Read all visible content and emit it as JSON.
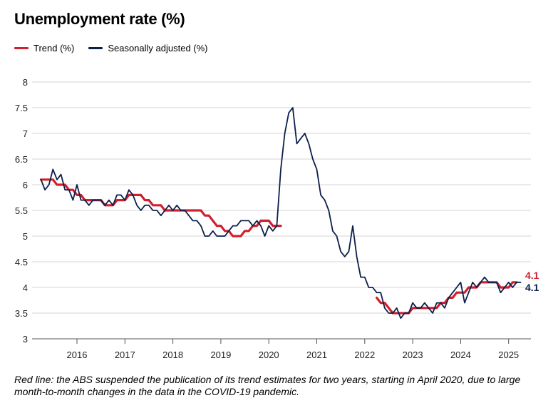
{
  "chart_data": {
    "type": "line",
    "title": "Unemployment rate (%)",
    "xlabel": "",
    "ylabel": "",
    "ylim": [
      3,
      8
    ],
    "yticks": [
      "3",
      "3.5",
      "4",
      "4.5",
      "5",
      "5.5",
      "6",
      "6.5",
      "7",
      "7.5",
      "8"
    ],
    "xticks": [
      "2016",
      "2017",
      "2018",
      "2019",
      "2020",
      "2021",
      "2022",
      "2023",
      "2024",
      "2025"
    ],
    "legend_position": "top-left",
    "grid": "horizontal",
    "series": [
      {
        "name": "Trend (%)",
        "color": "#d0202e",
        "end_label": "4.1",
        "segments": [
          [
            [
              "2015-04",
              6.1
            ],
            [
              "2015-05",
              6.1
            ],
            [
              "2015-06",
              6.1
            ],
            [
              "2015-07",
              6.1
            ],
            [
              "2015-08",
              6.0
            ],
            [
              "2015-09",
              6.0
            ],
            [
              "2015-10",
              6.0
            ],
            [
              "2015-11",
              5.9
            ],
            [
              "2015-12",
              5.9
            ],
            [
              "2016-01",
              5.8
            ],
            [
              "2016-02",
              5.8
            ],
            [
              "2016-03",
              5.7
            ],
            [
              "2016-04",
              5.7
            ],
            [
              "2016-05",
              5.7
            ],
            [
              "2016-06",
              5.7
            ],
            [
              "2016-07",
              5.7
            ],
            [
              "2016-08",
              5.6
            ],
            [
              "2016-09",
              5.6
            ],
            [
              "2016-10",
              5.6
            ],
            [
              "2016-11",
              5.7
            ],
            [
              "2016-12",
              5.7
            ],
            [
              "2017-01",
              5.7
            ],
            [
              "2017-02",
              5.8
            ],
            [
              "2017-03",
              5.8
            ],
            [
              "2017-04",
              5.8
            ],
            [
              "2017-05",
              5.8
            ],
            [
              "2017-06",
              5.7
            ],
            [
              "2017-07",
              5.7
            ],
            [
              "2017-08",
              5.6
            ],
            [
              "2017-09",
              5.6
            ],
            [
              "2017-10",
              5.6
            ],
            [
              "2017-11",
              5.5
            ],
            [
              "2017-12",
              5.5
            ],
            [
              "2018-01",
              5.5
            ],
            [
              "2018-02",
              5.5
            ],
            [
              "2018-03",
              5.5
            ],
            [
              "2018-04",
              5.5
            ],
            [
              "2018-05",
              5.5
            ],
            [
              "2018-06",
              5.5
            ],
            [
              "2018-07",
              5.5
            ],
            [
              "2018-08",
              5.5
            ],
            [
              "2018-09",
              5.4
            ],
            [
              "2018-10",
              5.4
            ],
            [
              "2018-11",
              5.3
            ],
            [
              "2018-12",
              5.2
            ],
            [
              "2019-01",
              5.2
            ],
            [
              "2019-02",
              5.1
            ],
            [
              "2019-03",
              5.1
            ],
            [
              "2019-04",
              5.0
            ],
            [
              "2019-05",
              5.0
            ],
            [
              "2019-06",
              5.0
            ],
            [
              "2019-07",
              5.1
            ],
            [
              "2019-08",
              5.1
            ],
            [
              "2019-09",
              5.2
            ],
            [
              "2019-10",
              5.2
            ],
            [
              "2019-11",
              5.3
            ],
            [
              "2019-12",
              5.3
            ],
            [
              "2020-01",
              5.3
            ],
            [
              "2020-02",
              5.2
            ],
            [
              "2020-03",
              5.2
            ],
            [
              "2020-04",
              5.2
            ]
          ],
          [
            [
              "2022-04",
              3.8
            ],
            [
              "2022-05",
              3.7
            ],
            [
              "2022-06",
              3.7
            ],
            [
              "2022-07",
              3.6
            ],
            [
              "2022-08",
              3.5
            ],
            [
              "2022-09",
              3.5
            ],
            [
              "2022-10",
              3.5
            ],
            [
              "2022-11",
              3.5
            ],
            [
              "2022-12",
              3.5
            ],
            [
              "2023-01",
              3.6
            ],
            [
              "2023-02",
              3.6
            ],
            [
              "2023-03",
              3.6
            ],
            [
              "2023-04",
              3.6
            ],
            [
              "2023-05",
              3.6
            ],
            [
              "2023-06",
              3.6
            ],
            [
              "2023-07",
              3.6
            ],
            [
              "2023-08",
              3.7
            ],
            [
              "2023-09",
              3.7
            ],
            [
              "2023-10",
              3.8
            ],
            [
              "2023-11",
              3.8
            ],
            [
              "2023-12",
              3.9
            ],
            [
              "2024-01",
              3.9
            ],
            [
              "2024-02",
              3.9
            ],
            [
              "2024-03",
              4.0
            ],
            [
              "2024-04",
              4.0
            ],
            [
              "2024-05",
              4.0
            ],
            [
              "2024-06",
              4.1
            ],
            [
              "2024-07",
              4.1
            ],
            [
              "2024-08",
              4.1
            ],
            [
              "2024-09",
              4.1
            ],
            [
              "2024-10",
              4.1
            ],
            [
              "2024-11",
              4.0
            ],
            [
              "2024-12",
              4.0
            ],
            [
              "2025-01",
              4.0
            ],
            [
              "2025-02",
              4.1
            ],
            [
              "2025-03",
              4.1
            ]
          ]
        ]
      },
      {
        "name": "Seasonally adjusted (%)",
        "color": "#0b1f4b",
        "end_label": "4.1",
        "segments": [
          [
            [
              "2015-04",
              6.1
            ],
            [
              "2015-05",
              5.9
            ],
            [
              "2015-06",
              6.0
            ],
            [
              "2015-07",
              6.3
            ],
            [
              "2015-08",
              6.1
            ],
            [
              "2015-09",
              6.2
            ],
            [
              "2015-10",
              5.9
            ],
            [
              "2015-11",
              5.9
            ],
            [
              "2015-12",
              5.7
            ],
            [
              "2016-01",
              6.0
            ],
            [
              "2016-02",
              5.7
            ],
            [
              "2016-03",
              5.7
            ],
            [
              "2016-04",
              5.6
            ],
            [
              "2016-05",
              5.7
            ],
            [
              "2016-06",
              5.7
            ],
            [
              "2016-07",
              5.7
            ],
            [
              "2016-08",
              5.6
            ],
            [
              "2016-09",
              5.7
            ],
            [
              "2016-10",
              5.6
            ],
            [
              "2016-11",
              5.8
            ],
            [
              "2016-12",
              5.8
            ],
            [
              "2017-01",
              5.7
            ],
            [
              "2017-02",
              5.9
            ],
            [
              "2017-03",
              5.8
            ],
            [
              "2017-04",
              5.6
            ],
            [
              "2017-05",
              5.5
            ],
            [
              "2017-06",
              5.6
            ],
            [
              "2017-07",
              5.6
            ],
            [
              "2017-08",
              5.5
            ],
            [
              "2017-09",
              5.5
            ],
            [
              "2017-10",
              5.4
            ],
            [
              "2017-11",
              5.5
            ],
            [
              "2017-12",
              5.6
            ],
            [
              "2018-01",
              5.5
            ],
            [
              "2018-02",
              5.6
            ],
            [
              "2018-03",
              5.5
            ],
            [
              "2018-04",
              5.5
            ],
            [
              "2018-05",
              5.4
            ],
            [
              "2018-06",
              5.3
            ],
            [
              "2018-07",
              5.3
            ],
            [
              "2018-08",
              5.2
            ],
            [
              "2018-09",
              5.0
            ],
            [
              "2018-10",
              5.0
            ],
            [
              "2018-11",
              5.1
            ],
            [
              "2018-12",
              5.0
            ],
            [
              "2019-01",
              5.0
            ],
            [
              "2019-02",
              5.0
            ],
            [
              "2019-03",
              5.1
            ],
            [
              "2019-04",
              5.2
            ],
            [
              "2019-05",
              5.2
            ],
            [
              "2019-06",
              5.3
            ],
            [
              "2019-07",
              5.3
            ],
            [
              "2019-08",
              5.3
            ],
            [
              "2019-09",
              5.2
            ],
            [
              "2019-10",
              5.3
            ],
            [
              "2019-11",
              5.2
            ],
            [
              "2019-12",
              5.0
            ],
            [
              "2020-01",
              5.2
            ],
            [
              "2020-02",
              5.1
            ],
            [
              "2020-03",
              5.2
            ],
            [
              "2020-04",
              6.3
            ],
            [
              "2020-05",
              7.0
            ],
            [
              "2020-06",
              7.4
            ],
            [
              "2020-07",
              7.5
            ],
            [
              "2020-08",
              6.8
            ],
            [
              "2020-09",
              6.9
            ],
            [
              "2020-10",
              7.0
            ],
            [
              "2020-11",
              6.8
            ],
            [
              "2020-12",
              6.5
            ],
            [
              "2021-01",
              6.3
            ],
            [
              "2021-02",
              5.8
            ],
            [
              "2021-03",
              5.7
            ],
            [
              "2021-04",
              5.5
            ],
            [
              "2021-05",
              5.1
            ],
            [
              "2021-06",
              5.0
            ],
            [
              "2021-07",
              4.7
            ],
            [
              "2021-08",
              4.6
            ],
            [
              "2021-09",
              4.7
            ],
            [
              "2021-10",
              5.2
            ],
            [
              "2021-11",
              4.6
            ],
            [
              "2021-12",
              4.2
            ],
            [
              "2022-01",
              4.2
            ],
            [
              "2022-02",
              4.0
            ],
            [
              "2022-03",
              4.0
            ],
            [
              "2022-04",
              3.9
            ],
            [
              "2022-05",
              3.9
            ],
            [
              "2022-06",
              3.6
            ],
            [
              "2022-07",
              3.5
            ],
            [
              "2022-08",
              3.5
            ],
            [
              "2022-09",
              3.6
            ],
            [
              "2022-10",
              3.4
            ],
            [
              "2022-11",
              3.5
            ],
            [
              "2022-12",
              3.5
            ],
            [
              "2023-01",
              3.7
            ],
            [
              "2023-02",
              3.6
            ],
            [
              "2023-03",
              3.6
            ],
            [
              "2023-04",
              3.7
            ],
            [
              "2023-05",
              3.6
            ],
            [
              "2023-06",
              3.5
            ],
            [
              "2023-07",
              3.7
            ],
            [
              "2023-08",
              3.7
            ],
            [
              "2023-09",
              3.6
            ],
            [
              "2023-10",
              3.8
            ],
            [
              "2023-11",
              3.9
            ],
            [
              "2023-12",
              4.0
            ],
            [
              "2024-01",
              4.1
            ],
            [
              "2024-02",
              3.7
            ],
            [
              "2024-03",
              3.9
            ],
            [
              "2024-04",
              4.1
            ],
            [
              "2024-05",
              4.0
            ],
            [
              "2024-06",
              4.1
            ],
            [
              "2024-07",
              4.2
            ],
            [
              "2024-08",
              4.1
            ],
            [
              "2024-09",
              4.1
            ],
            [
              "2024-10",
              4.1
            ],
            [
              "2024-11",
              3.9
            ],
            [
              "2024-12",
              4.0
            ],
            [
              "2025-01",
              4.1
            ],
            [
              "2025-02",
              4.0
            ],
            [
              "2025-03",
              4.1
            ],
            [
              "2025-04",
              4.1
            ]
          ]
        ]
      }
    ],
    "note": "Red line: the ABS suspended the publication of its trend estimates for two years, starting in April 2020, due to large month-to-month changes in the data in the COVID-19 pandemic."
  }
}
